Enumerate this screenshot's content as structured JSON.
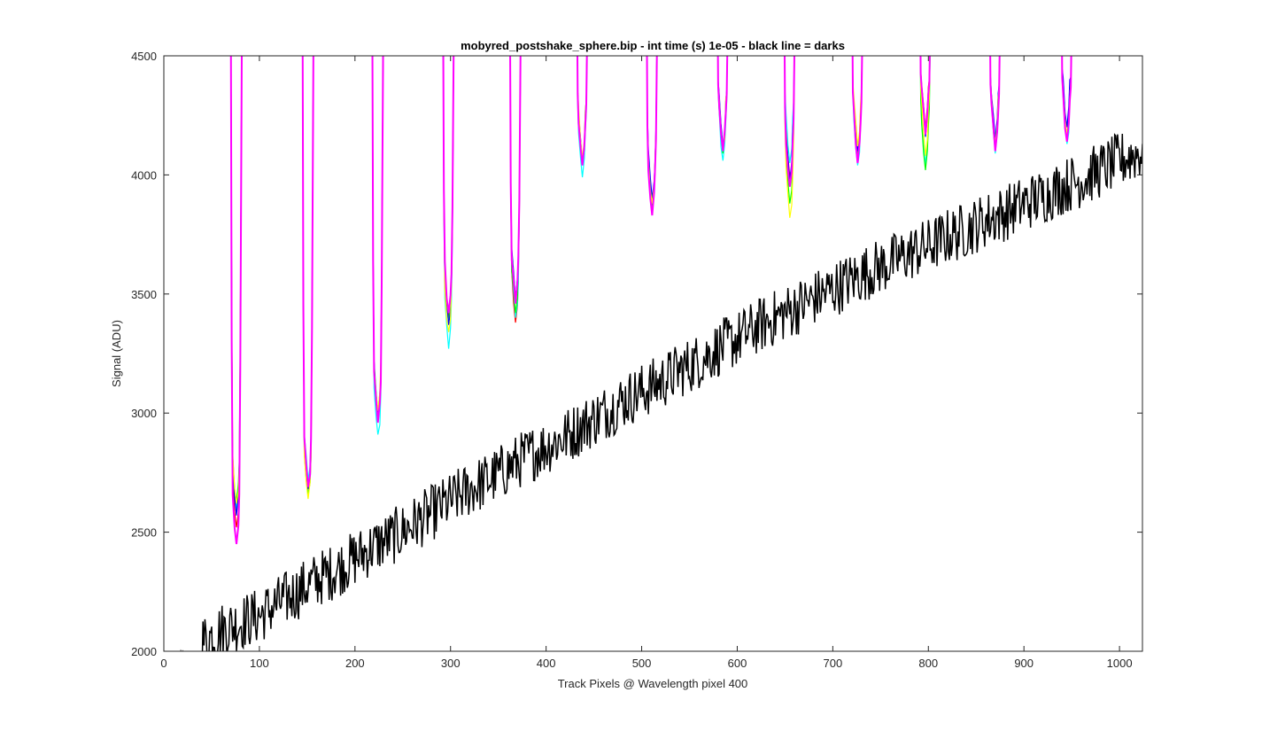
{
  "chart_data": {
    "type": "line",
    "title": "mobyred_postshake_sphere.bip - int time (s) 1e-05 - black line = darks",
    "xlabel": "Track Pixels @ Wavelength pixel 400",
    "ylabel": "Signal (ADU)",
    "xlim": [
      0,
      1024
    ],
    "ylim": [
      2000,
      4500
    ],
    "xticks": [
      0,
      100,
      200,
      300,
      400,
      500,
      600,
      700,
      800,
      900,
      1000
    ],
    "yticks": [
      2000,
      2500,
      3000,
      3500,
      4000,
      4500
    ],
    "grid": false,
    "legend": "none",
    "darks": {
      "color": "#000000",
      "x": [
        20,
        40,
        60,
        80,
        100,
        120,
        140,
        160,
        180,
        200,
        220,
        240,
        260,
        280,
        300,
        320,
        340,
        360,
        380,
        400,
        420,
        440,
        460,
        480,
        500,
        520,
        540,
        560,
        580,
        600,
        620,
        640,
        660,
        680,
        700,
        720,
        740,
        760,
        780,
        800,
        820,
        840,
        860,
        880,
        900,
        920,
        940,
        960,
        980,
        1000,
        1024
      ],
      "y": [
        1990,
        2040,
        2090,
        2120,
        2150,
        2200,
        2250,
        2300,
        2340,
        2390,
        2440,
        2480,
        2530,
        2580,
        2630,
        2680,
        2720,
        2770,
        2820,
        2860,
        2900,
        2950,
        3000,
        3050,
        3090,
        3130,
        3180,
        3220,
        3270,
        3310,
        3360,
        3400,
        3440,
        3480,
        3520,
        3560,
        3600,
        3630,
        3670,
        3700,
        3740,
        3770,
        3810,
        3840,
        3880,
        3910,
        3950,
        3980,
        4020,
        4060,
        4100
      ],
      "noise_amplitude_adu": 120
    },
    "series": [
      {
        "color": "#ff00ff",
        "dips": [
          [
            76,
            2450
          ],
          [
            151,
            2690
          ],
          [
            224,
            2960
          ],
          [
            298,
            3420
          ],
          [
            368,
            3460
          ],
          [
            438,
            4040
          ],
          [
            511,
            3830
          ],
          [
            585,
            4100
          ],
          [
            655,
            3950
          ],
          [
            726,
            4050
          ],
          [
            797,
            4170
          ],
          [
            870,
            4100
          ],
          [
            945,
            4140
          ]
        ]
      },
      {
        "color": "#ff0000",
        "dips": [
          [
            76,
            2520
          ],
          [
            151,
            2700
          ],
          [
            224,
            2980
          ],
          [
            298,
            3400
          ],
          [
            368,
            3380
          ],
          [
            438,
            4050
          ],
          [
            511,
            3850
          ],
          [
            585,
            4100
          ],
          [
            655,
            3990
          ],
          [
            726,
            4080
          ],
          [
            797,
            4190
          ],
          [
            870,
            4120
          ],
          [
            945,
            4160
          ]
        ]
      },
      {
        "color": "#00ffff",
        "dips": [
          [
            76,
            2600
          ],
          [
            151,
            2720
          ],
          [
            224,
            2910
          ],
          [
            298,
            3270
          ],
          [
            368,
            3400
          ],
          [
            438,
            3990
          ],
          [
            511,
            3860
          ],
          [
            585,
            4060
          ],
          [
            655,
            4050
          ],
          [
            726,
            4040
          ],
          [
            797,
            4040
          ],
          [
            870,
            4090
          ],
          [
            945,
            4130
          ]
        ]
      },
      {
        "color": "#00ff00",
        "dips": [
          [
            76,
            2630
          ],
          [
            151,
            2660
          ],
          [
            224,
            3000
          ],
          [
            298,
            3380
          ],
          [
            368,
            3420
          ],
          [
            438,
            4060
          ],
          [
            511,
            3870
          ],
          [
            585,
            4090
          ],
          [
            655,
            3880
          ],
          [
            726,
            4090
          ],
          [
            797,
            4020
          ],
          [
            870,
            4110
          ],
          [
            945,
            4150
          ]
        ]
      },
      {
        "color": "#0000ff",
        "dips": [
          [
            76,
            2570
          ],
          [
            151,
            2680
          ],
          [
            224,
            2990
          ],
          [
            298,
            3370
          ],
          [
            368,
            3480
          ],
          [
            438,
            4050
          ],
          [
            511,
            3900
          ],
          [
            585,
            4120
          ],
          [
            655,
            3970
          ],
          [
            726,
            4100
          ],
          [
            797,
            4160
          ],
          [
            870,
            4150
          ],
          [
            945,
            4200
          ]
        ]
      },
      {
        "color": "#ffff00",
        "dips": [
          [
            76,
            2620
          ],
          [
            151,
            2640
          ],
          [
            224,
            3010
          ],
          [
            298,
            3340
          ],
          [
            368,
            3470
          ],
          [
            438,
            4070
          ],
          [
            511,
            3880
          ],
          [
            585,
            4110
          ],
          [
            655,
            3820
          ],
          [
            726,
            4120
          ],
          [
            797,
            4080
          ],
          [
            870,
            4130
          ],
          [
            945,
            4170
          ]
        ]
      }
    ]
  }
}
